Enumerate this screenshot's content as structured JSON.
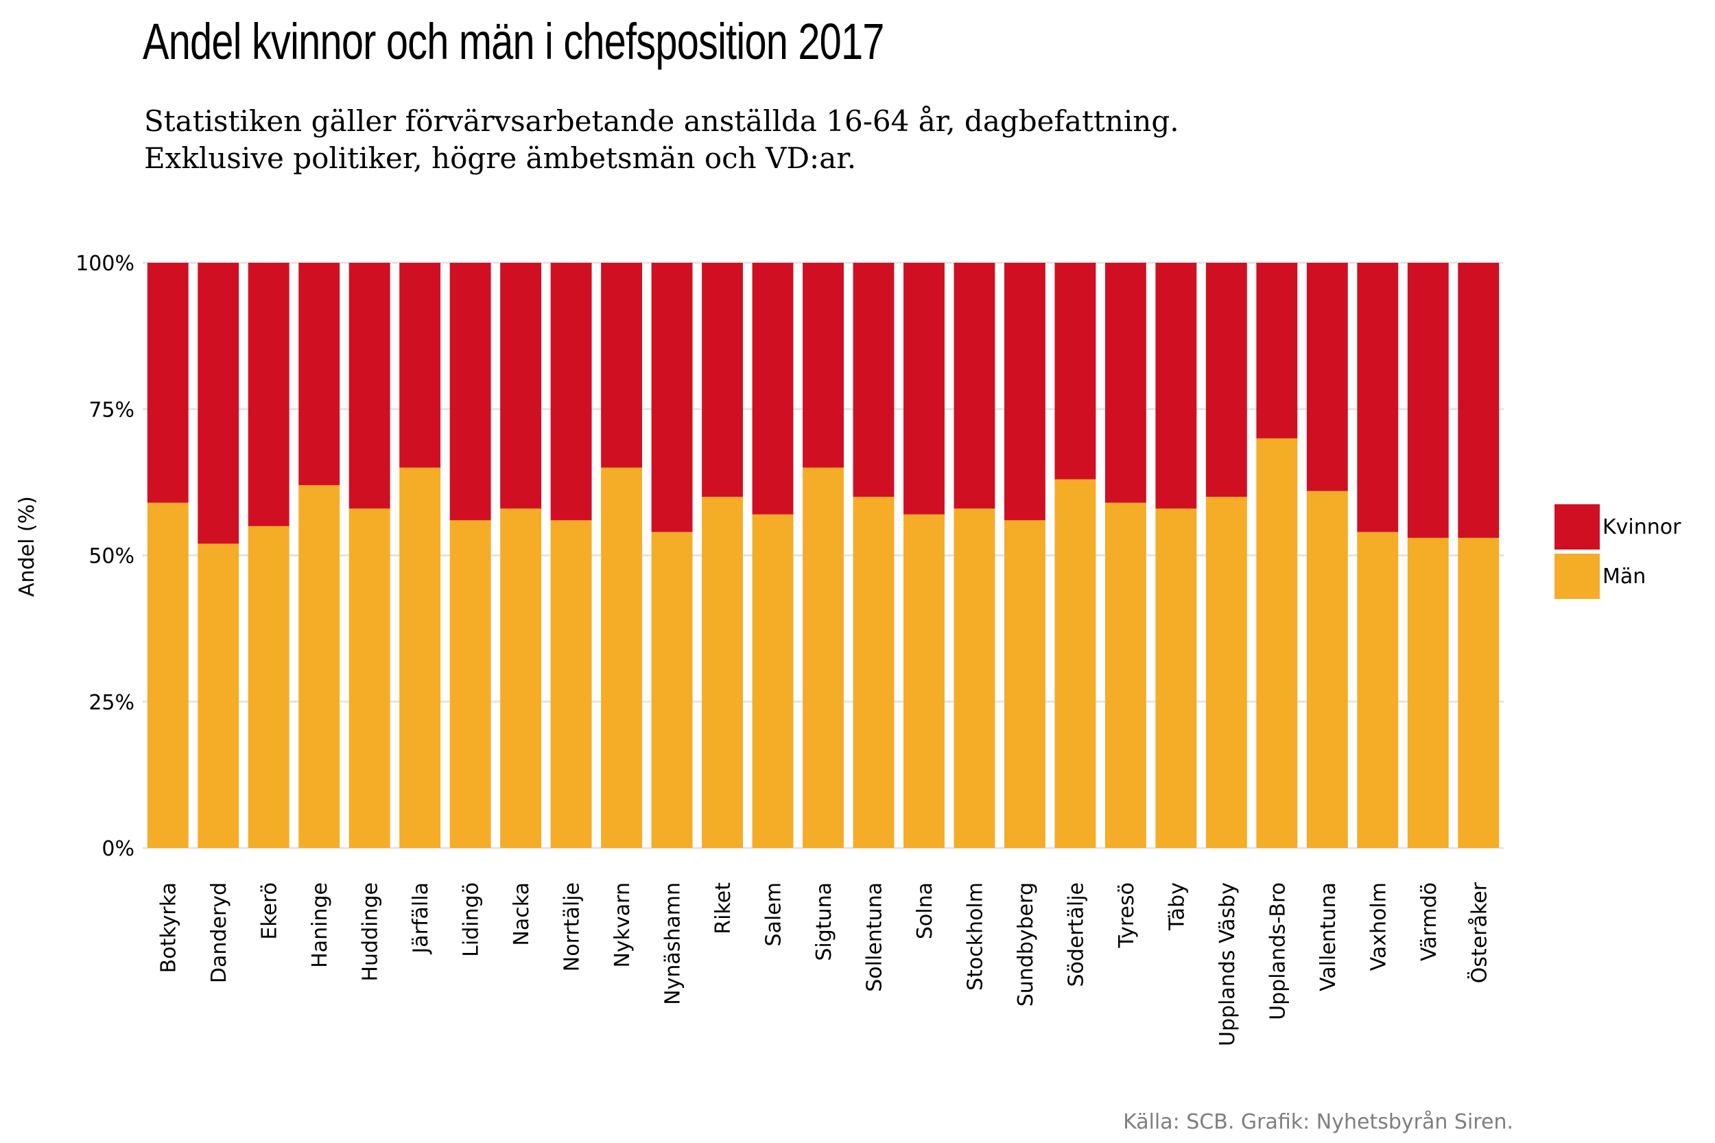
{
  "title": "Andel kvinnor och män i chefsposition 2017",
  "subtitle_line1": "Statistiken gäller förvärvsarbetande anställda 16-64 år, dagbefattning.",
  "subtitle_line2": "Exklusive politiker, högre ämbetsmän och VD:ar.",
  "caption": "Källa: SCB. Grafik: Nyhetsbyrån Siren.",
  "colors": {
    "Kvinnor": "#d01022",
    "Män": "#f5ac27",
    "grid": "#e4e4e4"
  },
  "chart_data": {
    "type": "bar",
    "stacked": true,
    "xlabel": "",
    "ylabel": "Andel (%)",
    "ylim": [
      0,
      100
    ],
    "yticks": [
      0,
      25,
      50,
      75,
      100
    ],
    "ytick_labels": [
      "0%",
      "25%",
      "50%",
      "75%",
      "100%"
    ],
    "grid": true,
    "legend_position": "right",
    "categories": [
      "Botkyrka",
      "Danderyd",
      "Ekerö",
      "Haninge",
      "Huddinge",
      "Järfälla",
      "Lidingö",
      "Nacka",
      "Norrtälje",
      "Nykvarn",
      "Nynäshamn",
      "Riket",
      "Salem",
      "Sigtuna",
      "Sollentuna",
      "Solna",
      "Stockholm",
      "Sundbyberg",
      "Södertälje",
      "Tyresö",
      "Täby",
      "Upplands Väsby",
      "Upplands-Bro",
      "Vallentuna",
      "Vaxholm",
      "Värmdö",
      "Österåker"
    ],
    "series": [
      {
        "name": "Män",
        "values": [
          59,
          52,
          55,
          62,
          58,
          65,
          56,
          58,
          56,
          65,
          54,
          60,
          57,
          65,
          60,
          57,
          58,
          56,
          63,
          59,
          58,
          60,
          70,
          61,
          54,
          53,
          53
        ]
      },
      {
        "name": "Kvinnor",
        "values": [
          41,
          48,
          45,
          38,
          42,
          35,
          44,
          42,
          44,
          35,
          46,
          40,
          43,
          35,
          40,
          43,
          42,
          44,
          37,
          41,
          42,
          40,
          30,
          39,
          46,
          47,
          47
        ]
      }
    ]
  }
}
